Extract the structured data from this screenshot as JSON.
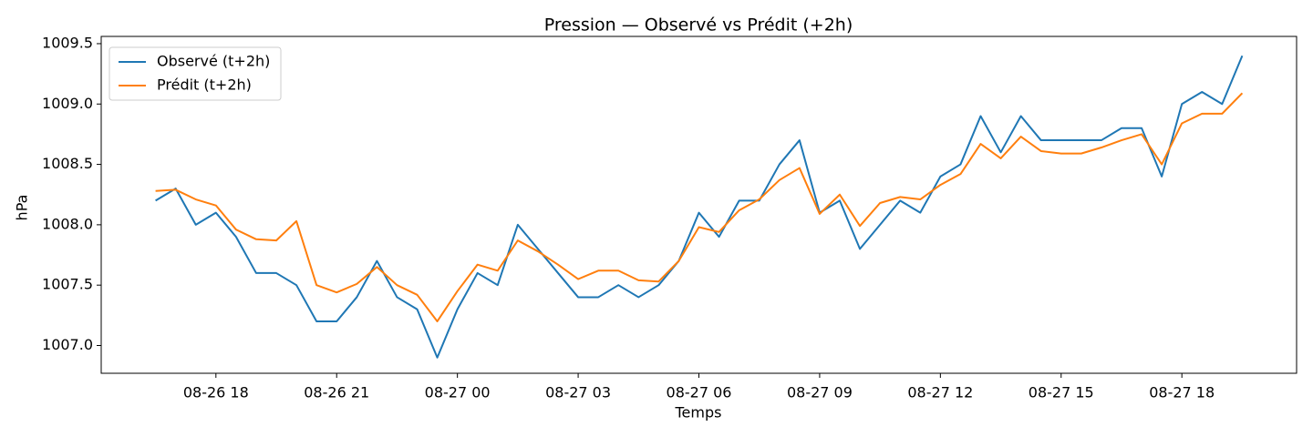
{
  "chart_data": {
    "type": "line",
    "title": "Pression — Observé vs Prédit (+2h)",
    "x_label": "Temps",
    "y_label": "hPa",
    "x": [
      "08-26 16:30",
      "08-26 17:00",
      "08-26 17:30",
      "08-26 18:00",
      "08-26 18:30",
      "08-26 19:00",
      "08-26 19:30",
      "08-26 20:00",
      "08-26 20:30",
      "08-26 21:00",
      "08-26 21:30",
      "08-26 22:00",
      "08-26 22:30",
      "08-26 23:00",
      "08-26 23:30",
      "08-27 00:00",
      "08-27 00:30",
      "08-27 01:00",
      "08-27 01:30",
      "08-27 02:00",
      "08-27 02:30",
      "08-27 03:00",
      "08-27 03:30",
      "08-27 04:00",
      "08-27 04:30",
      "08-27 05:00",
      "08-27 05:30",
      "08-27 06:00",
      "08-27 06:30",
      "08-27 07:00",
      "08-27 07:30",
      "08-27 08:00",
      "08-27 08:30",
      "08-27 09:00",
      "08-27 09:30",
      "08-27 10:00",
      "08-27 10:30",
      "08-27 11:00",
      "08-27 11:30",
      "08-27 12:00",
      "08-27 12:30",
      "08-27 13:00",
      "08-27 13:30",
      "08-27 14:00",
      "08-27 14:30",
      "08-27 15:00",
      "08-27 15:30",
      "08-27 16:00",
      "08-27 16:30",
      "08-27 17:00",
      "08-27 17:30",
      "08-27 18:00",
      "08-27 18:30",
      "08-27 19:00",
      "08-27 19:30"
    ],
    "series": [
      {
        "name": "Observé (t+2h)",
        "color": "#1f77b4",
        "values": [
          1008.2,
          1008.3,
          1008.0,
          1008.1,
          1007.9,
          1007.6,
          1007.6,
          1007.5,
          1007.2,
          1007.2,
          1007.4,
          1007.7,
          1007.4,
          1007.3,
          1006.9,
          1007.3,
          1007.6,
          1007.5,
          1008.0,
          1007.8,
          1007.6,
          1007.4,
          1007.4,
          1007.5,
          1007.4,
          1007.5,
          1007.7,
          1008.1,
          1007.9,
          1008.2,
          1008.2,
          1008.5,
          1008.7,
          1008.1,
          1008.2,
          1007.8,
          1008.0,
          1008.2,
          1008.1,
          1008.4,
          1008.5,
          1008.9,
          1008.6,
          1008.9,
          1008.7,
          1008.7,
          1008.7,
          1008.7,
          1008.8,
          1008.8,
          1008.4,
          1009.0,
          1009.1,
          1009.0,
          1009.4
        ]
      },
      {
        "name": "Prédit (t+2h)",
        "color": "#ff7f0e",
        "values": [
          1008.28,
          1008.29,
          1008.21,
          1008.16,
          1007.96,
          1007.88,
          1007.87,
          1008.03,
          1007.5,
          1007.44,
          1007.51,
          1007.65,
          1007.5,
          1007.42,
          1007.2,
          1007.45,
          1007.67,
          1007.62,
          1007.87,
          1007.78,
          1007.67,
          1007.55,
          1007.62,
          1007.62,
          1007.54,
          1007.53,
          1007.7,
          1007.98,
          1007.94,
          1008.12,
          1008.21,
          1008.37,
          1008.47,
          1008.09,
          1008.25,
          1007.99,
          1008.18,
          1008.23,
          1008.21,
          1008.33,
          1008.42,
          1008.67,
          1008.55,
          1008.73,
          1008.61,
          1008.59,
          1008.59,
          1008.64,
          1008.7,
          1008.75,
          1008.5,
          1008.84,
          1008.92,
          1008.92,
          1009.09
        ]
      }
    ],
    "xlim": [
      "08-26 15:09",
      "08-27 20:51"
    ],
    "xticks": [
      {
        "value": "08-26 18:00",
        "label": "08-26 18"
      },
      {
        "value": "08-26 21:00",
        "label": "08-26 21"
      },
      {
        "value": "08-27 00:00",
        "label": "08-27 00"
      },
      {
        "value": "08-27 03:00",
        "label": "08-27 03"
      },
      {
        "value": "08-27 06:00",
        "label": "08-27 06"
      },
      {
        "value": "08-27 09:00",
        "label": "08-27 09"
      },
      {
        "value": "08-27 12:00",
        "label": "08-27 12"
      },
      {
        "value": "08-27 15:00",
        "label": "08-27 15"
      },
      {
        "value": "08-27 18:00",
        "label": "08-27 18"
      }
    ],
    "ylim": [
      1006.77,
      1009.56
    ],
    "yticks": [
      {
        "value": 1007.0,
        "label": "1007.0"
      },
      {
        "value": 1007.5,
        "label": "1007.5"
      },
      {
        "value": 1008.0,
        "label": "1008.0"
      },
      {
        "value": 1008.5,
        "label": "1008.5"
      },
      {
        "value": 1009.0,
        "label": "1009.0"
      },
      {
        "value": 1009.5,
        "label": "1009.5"
      }
    ],
    "legend": "upper left",
    "grid": false
  }
}
